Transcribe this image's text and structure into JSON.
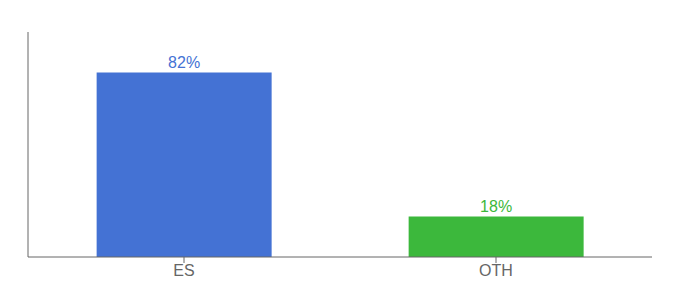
{
  "chart_data": {
    "type": "bar",
    "categories": [
      "ES",
      "OTH"
    ],
    "values": [
      82,
      18
    ],
    "value_labels": [
      "82%",
      "18%"
    ],
    "data_labels": true,
    "colors": [
      "#4472d4",
      "#3cb83c"
    ],
    "ylim": [
      0,
      100
    ],
    "grid": false,
    "tick_labels": "x"
  }
}
